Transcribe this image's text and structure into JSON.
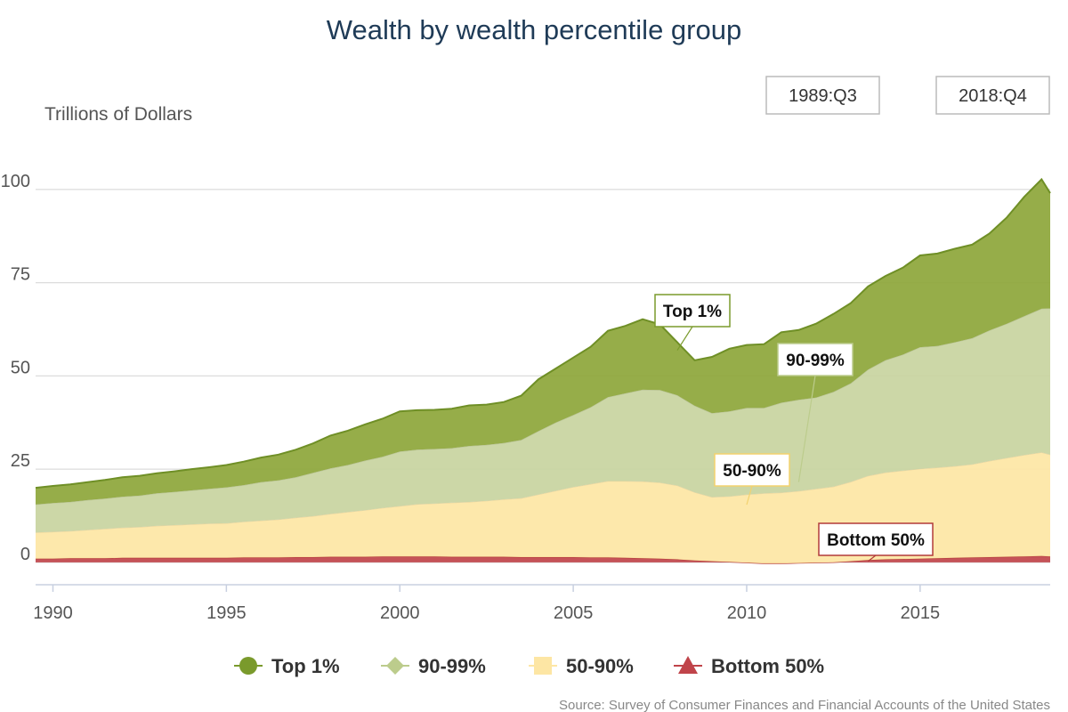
{
  "chart_data": {
    "type": "area",
    "stacked": true,
    "title": "Wealth by wealth percentile group",
    "ylabel": "Trillions of Dollars",
    "xlabel": "",
    "xlim": [
      1989.5,
      2018.75
    ],
    "ylim": [
      -6,
      115
    ],
    "y_ticks": [
      0,
      25,
      50,
      75,
      100
    ],
    "x_ticks": [
      1990,
      1995,
      2000,
      2005,
      2010,
      2015
    ],
    "grid": "horizontal",
    "legend_position": "bottom",
    "range_labels": [
      "1989:Q3",
      "2018:Q4"
    ],
    "source": "Source: Survey of Consumer Finances and Financial Accounts of the United States",
    "x": [
      1989.5,
      1990.0,
      1990.5,
      1991.0,
      1991.5,
      1992.0,
      1992.5,
      1993.0,
      1993.5,
      1994.0,
      1994.5,
      1995.0,
      1995.5,
      1996.0,
      1996.5,
      1997.0,
      1997.5,
      1998.0,
      1998.5,
      1999.0,
      1999.5,
      2000.0,
      2000.5,
      2001.0,
      2001.5,
      2002.0,
      2002.5,
      2003.0,
      2003.5,
      2004.0,
      2004.5,
      2005.0,
      2005.5,
      2006.0,
      2006.5,
      2007.0,
      2007.5,
      2008.0,
      2008.5,
      2009.0,
      2009.5,
      2010.0,
      2010.5,
      2011.0,
      2011.5,
      2012.0,
      2012.5,
      2013.0,
      2013.5,
      2014.0,
      2014.5,
      2015.0,
      2015.5,
      2016.0,
      2016.5,
      2017.0,
      2017.5,
      2018.0,
      2018.5,
      2018.75
    ],
    "series": [
      {
        "name": "Bottom 50%",
        "color": "#c0444a",
        "values": [
          1.0,
          1.0,
          1.1,
          1.1,
          1.1,
          1.2,
          1.2,
          1.2,
          1.2,
          1.2,
          1.2,
          1.2,
          1.3,
          1.3,
          1.3,
          1.4,
          1.4,
          1.5,
          1.5,
          1.5,
          1.6,
          1.6,
          1.6,
          1.6,
          1.5,
          1.5,
          1.5,
          1.5,
          1.4,
          1.4,
          1.4,
          1.4,
          1.3,
          1.3,
          1.2,
          1.1,
          1.0,
          0.8,
          0.5,
          0.3,
          0.1,
          -0.1,
          -0.3,
          -0.3,
          -0.2,
          -0.1,
          0.0,
          0.3,
          0.6,
          0.8,
          0.9,
          1.0,
          1.1,
          1.2,
          1.3,
          1.4,
          1.5,
          1.6,
          1.7,
          1.6
        ]
      },
      {
        "name": "50-90%",
        "color": "#fde6a4",
        "values": [
          7.0,
          7.2,
          7.3,
          7.6,
          7.9,
          8.1,
          8.3,
          8.6,
          8.8,
          9.0,
          9.2,
          9.3,
          9.6,
          9.9,
          10.2,
          10.6,
          11.0,
          11.5,
          12.0,
          12.5,
          13.0,
          13.5,
          14.0,
          14.2,
          14.5,
          14.7,
          15.0,
          15.4,
          15.8,
          16.8,
          17.8,
          18.8,
          19.7,
          20.5,
          20.6,
          20.6,
          20.4,
          19.8,
          18.3,
          17.2,
          17.6,
          18.3,
          18.8,
          19.0,
          19.3,
          19.8,
          20.3,
          21.3,
          22.6,
          23.3,
          23.7,
          24.1,
          24.3,
          24.6,
          25.0,
          25.8,
          26.5,
          27.2,
          27.8,
          27.3
        ]
      },
      {
        "name": "90-99%",
        "color": "#c8d4a0",
        "values": [
          7.5,
          7.7,
          7.8,
          8.0,
          8.1,
          8.3,
          8.4,
          8.7,
          8.9,
          9.1,
          9.3,
          9.6,
          9.8,
          10.3,
          10.5,
          10.8,
          11.6,
          12.2,
          12.6,
          13.3,
          13.7,
          14.6,
          14.6,
          14.6,
          14.6,
          15.0,
          15.0,
          15.1,
          15.6,
          17.0,
          18.3,
          19.3,
          20.6,
          22.5,
          23.5,
          24.6,
          24.8,
          24.2,
          23.2,
          22.5,
          22.8,
          23.2,
          22.9,
          24.1,
          24.5,
          24.5,
          25.4,
          26.4,
          28.5,
          30.1,
          31.1,
          32.6,
          32.6,
          33.2,
          33.8,
          35.0,
          36.0,
          37.2,
          38.5,
          39.2
        ]
      },
      {
        "name": "Top 1%",
        "color": "#8da63a",
        "values": [
          4.5,
          4.6,
          4.7,
          4.8,
          5.0,
          5.2,
          5.3,
          5.4,
          5.5,
          5.7,
          5.8,
          6.0,
          6.3,
          6.6,
          6.9,
          7.4,
          7.9,
          8.8,
          9.2,
          9.7,
          10.2,
          10.8,
          10.6,
          10.5,
          10.6,
          10.9,
          10.8,
          11.0,
          11.9,
          13.9,
          14.5,
          15.4,
          16.2,
          17.8,
          18.1,
          18.9,
          17.6,
          14.2,
          12.2,
          15.1,
          16.8,
          16.9,
          17.1,
          18.9,
          18.7,
          19.8,
          20.9,
          21.5,
          22.3,
          22.6,
          23.3,
          24.6,
          24.8,
          25.1,
          25.1,
          26.0,
          28.5,
          32.0,
          34.7,
          30.9
        ]
      }
    ]
  },
  "callouts": {
    "top1": "Top 1%",
    "p90_99": "90-99%",
    "p50_90": "50-90%",
    "bottom50": "Bottom 50%"
  },
  "legend": [
    {
      "label": "Top 1%",
      "marker": "circle",
      "color": "#7a9a2c"
    },
    {
      "label": "90-99%",
      "marker": "diamond",
      "color": "#bccc8c"
    },
    {
      "label": "50-90%",
      "marker": "square",
      "color": "#fde6a4"
    },
    {
      "label": "Bottom 50%",
      "marker": "triangle",
      "color": "#c0444a"
    }
  ]
}
